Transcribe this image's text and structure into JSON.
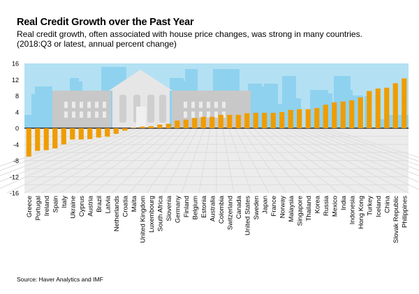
{
  "title": "Real Credit Growth over the Past Year",
  "subtitle_line1": "Real credit growth, often associated with house price changes, was strong in many countries.",
  "subtitle_line2": "(2018:Q3 or latest, annual percent change)",
  "source": "Source: Haver Analytics and IMF",
  "colors": {
    "bar": "#f5a300",
    "bar_stripe": "#e08e00",
    "sky": "#b3e1f3",
    "skyline": "#8fd2ef",
    "building": "#c8c8c8",
    "temple": "#e6e6e6",
    "floor": "#ececec"
  },
  "chart_data": {
    "type": "bar",
    "title": "Real Credit Growth over the Past Year",
    "xlabel": "",
    "ylabel": "",
    "ylim": [
      -16,
      16
    ],
    "yticks": [
      -16,
      -12,
      -8,
      -4,
      0,
      4,
      8,
      12,
      16
    ],
    "grid": false,
    "categories": [
      "Greece",
      "Portugal",
      "Ireland",
      "Spain",
      "Italy",
      "Ukraine",
      "Cyprus",
      "Austria",
      "Brazil",
      "Latvia",
      "Netherlands",
      "Croatia",
      "Malta",
      "United Kingdom",
      "Luxembourg",
      "South Africa",
      "Slovenia",
      "Germany",
      "Finland",
      "Belgium",
      "Estonia",
      "Australia",
      "Colombia",
      "Switzerland",
      "Canada",
      "United States",
      "Sweden",
      "Japan",
      "France",
      "Norway",
      "Malaysia",
      "Singapore",
      "Thailand",
      "Korea",
      "Russia",
      "Mexico",
      "India",
      "Indonesia",
      "Hong Kong",
      "Turkey",
      "Iceland",
      "China",
      "Slovak Republic",
      "Philippines"
    ],
    "values": [
      -7.0,
      -5.6,
      -5.4,
      -5.0,
      -4.0,
      -2.8,
      -2.8,
      -2.7,
      -2.3,
      -2.1,
      -1.4,
      -0.6,
      0.1,
      0.4,
      0.5,
      0.9,
      1.1,
      1.9,
      2.1,
      2.5,
      2.8,
      2.8,
      3.3,
      3.3,
      3.3,
      3.7,
      3.8,
      3.8,
      3.8,
      4.0,
      4.5,
      4.7,
      4.7,
      5.0,
      5.8,
      6.4,
      6.6,
      6.9,
      7.6,
      9.2,
      9.8,
      10.0,
      11.1,
      12.3
    ]
  }
}
